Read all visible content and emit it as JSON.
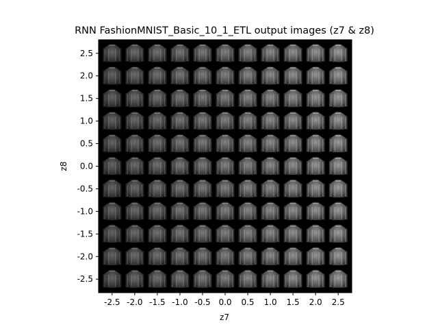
{
  "chart_data": {
    "type": "image-grid",
    "title": "RNN FashionMNIST_Basic_10_1_ETL output images (z7 & z8)",
    "xlabel": "z7",
    "ylabel": "z8",
    "x_values": [
      -2.5,
      -2.0,
      -1.5,
      -1.0,
      -0.5,
      0.0,
      0.5,
      1.0,
      1.5,
      2.0,
      2.5
    ],
    "y_values": [
      2.5,
      2.0,
      1.5,
      1.0,
      0.5,
      0.0,
      -0.5,
      -1.0,
      -1.5,
      -2.0,
      -2.5
    ],
    "x_tick_labels": [
      "-2.5",
      "-2.0",
      "-1.5",
      "-1.0",
      "-0.5",
      "0.0",
      "0.5",
      "1.0",
      "1.5",
      "2.0",
      "2.5"
    ],
    "y_tick_labels": [
      "2.5",
      "2.0",
      "1.5",
      "1.0",
      "0.5",
      "0.0",
      "-0.5",
      "-1.0",
      "-1.5",
      "-2.0",
      "-2.5"
    ],
    "xlim": [
      -2.8,
      2.8
    ],
    "ylim": [
      -2.8,
      2.8
    ],
    "grid": false,
    "background_color": "#000000",
    "image_color": "#bfbfbf",
    "image_content": "decoded garment images (pullover / shirt shapes)"
  }
}
